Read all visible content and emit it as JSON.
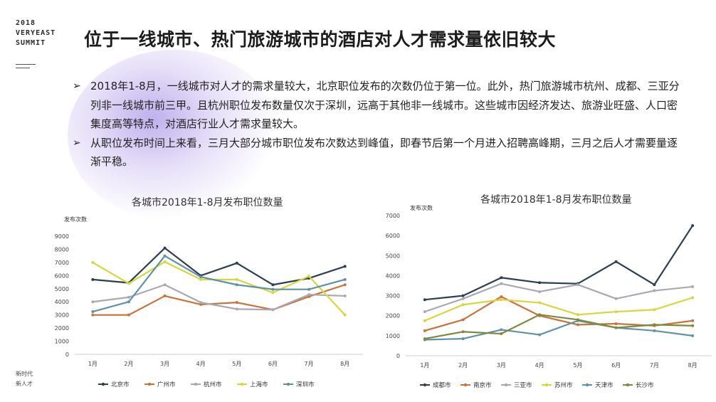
{
  "brand": {
    "lines": [
      "2018",
      "VERYEAST",
      "SUMMIT"
    ]
  },
  "title": "位于一线城市、热门旅游城市的酒店对人才需求量依旧较大",
  "bullets": [
    "2018年1-8月，一线城市对人才的需求量较大，北京职位发布的次数仍位于第一位。此外，热门旅游城市杭州、成都、三亚分列非一线城市前三甲。且杭州职位发布数量仅次于深圳，远高于其他非一线城市。这些城市因经济发达、旅游业旺盛、人口密集度高等特点，对酒店行业人才需求量较大。",
    "从职位发布时间上来看，三月大部分城市职位发布次数达到峰值，即春节后第一个月进入招聘高峰期，三月之后人才需要量逐渐平稳。"
  ],
  "bullet_icon": "arrow-bullet-icon",
  "footer_corner": [
    "新时代",
    "新人才"
  ],
  "chart_data": [
    {
      "type": "line",
      "title": "各城市2018年1-8月发布职位数量",
      "ylabel": "发布次数",
      "categories": [
        "1月",
        "2月",
        "3月",
        "4月",
        "5月",
        "6月",
        "7月",
        "8月"
      ],
      "ylim": [
        0,
        9000
      ],
      "yticks": [
        0,
        1000,
        2000,
        3000,
        4000,
        5000,
        6000,
        7000,
        8000,
        9000
      ],
      "legend_position": "bottom",
      "grid": false,
      "series": [
        {
          "name": "北京市",
          "color": "#2c3e50",
          "values": [
            5700,
            5450,
            8100,
            6000,
            6950,
            5300,
            5800,
            6700
          ]
        },
        {
          "name": "广州市",
          "color": "#c8733a",
          "values": [
            3000,
            3000,
            4450,
            3800,
            3950,
            3400,
            4400,
            5300
          ]
        },
        {
          "name": "杭州市",
          "color": "#a9a9b3",
          "values": [
            4000,
            4350,
            5300,
            3950,
            3450,
            3400,
            4550,
            4450
          ]
        },
        {
          "name": "上海市",
          "color": "#d8d63a",
          "values": [
            7000,
            5400,
            7050,
            5700,
            5700,
            4700,
            5950,
            3000
          ]
        },
        {
          "name": "深圳市",
          "color": "#5f92a8",
          "values": [
            3250,
            4000,
            7500,
            5900,
            5300,
            4950,
            4950,
            5700
          ]
        }
      ]
    },
    {
      "type": "line",
      "title": "各城市2018年1-8月发布职位数量",
      "ylabel": "发布次数",
      "categories": [
        "1月",
        "2月",
        "3月",
        "4月",
        "5月",
        "6月",
        "7月",
        "8月"
      ],
      "ylim": [
        0,
        7000
      ],
      "yticks": [
        0,
        1000,
        2000,
        3000,
        4000,
        5000,
        6000,
        7000
      ],
      "legend_position": "bottom",
      "grid": false,
      "series": [
        {
          "name": "成都市",
          "color": "#2c3e50",
          "values": [
            2800,
            3000,
            3900,
            3650,
            3600,
            4700,
            3550,
            6500
          ]
        },
        {
          "name": "南京市",
          "color": "#c8733a",
          "values": [
            1250,
            1800,
            2950,
            2000,
            1550,
            1600,
            1500,
            1750
          ]
        },
        {
          "name": "三亚市",
          "color": "#a9a9b3",
          "values": [
            2200,
            2850,
            3600,
            3200,
            3550,
            2850,
            3250,
            3450
          ]
        },
        {
          "name": "苏州市",
          "color": "#d8d63a",
          "values": [
            1750,
            2550,
            2800,
            2650,
            2050,
            2200,
            2300,
            2900
          ]
        },
        {
          "name": "天津市",
          "color": "#5f92a8",
          "values": [
            800,
            850,
            1300,
            1050,
            1750,
            1400,
            1250,
            1000
          ]
        },
        {
          "name": "长沙市",
          "color": "#7d8a3a",
          "values": [
            850,
            1200,
            1100,
            2050,
            1800,
            1400,
            1550,
            1500
          ]
        }
      ]
    }
  ]
}
